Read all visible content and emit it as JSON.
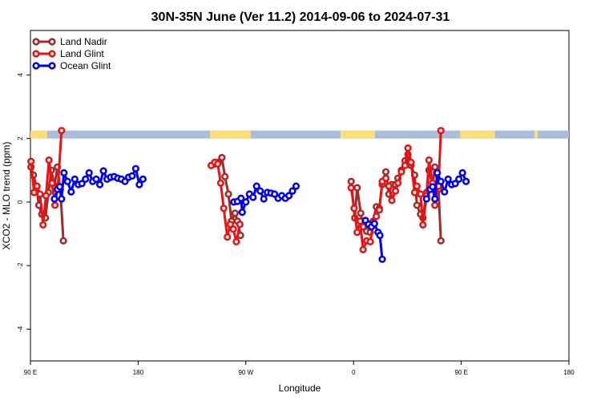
{
  "chart_data": {
    "type": "line",
    "title": "30N-35N June (Ver 11.2)   2014-09-06 to 2024-07-31",
    "xlabel": "Longitude",
    "ylabel": "XCO2 - MLO trend (ppm)",
    "xlim": [
      90,
      540
    ],
    "ylim": [
      -5.0,
      5.4
    ],
    "x_ticks": [
      {
        "value": 90,
        "label": "90 E"
      },
      {
        "value": 180,
        "label": "180"
      },
      {
        "value": 270,
        "label": "90 W"
      },
      {
        "value": 360,
        "label": "0"
      },
      {
        "value": 450,
        "label": "90 E"
      },
      {
        "value": 540,
        "label": "180"
      }
    ],
    "y_ticks": [
      {
        "value": -4,
        "label": "-4"
      },
      {
        "value": -2,
        "label": "-2"
      },
      {
        "value": 0,
        "label": "0"
      },
      {
        "value": 2,
        "label": "2"
      },
      {
        "value": 4,
        "label": "4"
      }
    ],
    "legend": {
      "position": "top-left"
    },
    "surface_band": {
      "y_range": [
        2.0,
        2.25
      ],
      "land_color": "#fddc7a",
      "ocean_color": "#a8bcdc",
      "land_segments": [
        [
          90,
          104
        ],
        [
          240,
          274
        ],
        [
          349,
          378
        ],
        [
          449,
          478
        ],
        [
          511,
          514
        ]
      ]
    },
    "series": [
      {
        "name": "Land Nadir",
        "color": "#a52a2a",
        "segments": [
          [
            [
              90.5,
              1.1
            ],
            [
              92.5,
              0.85
            ],
            [
              95,
              0.5
            ],
            [
              97,
              -0.1
            ],
            [
              99.5,
              -0.38
            ],
            [
              102.5,
              -0.5
            ],
            [
              105,
              0.3
            ],
            [
              107.5,
              1.0
            ],
            [
              110,
              0.5
            ],
            [
              112.5,
              1.1
            ],
            [
              115,
              0.4
            ],
            [
              117.5,
              -1.22
            ]
          ],
          [
            [
              244,
              1.2
            ],
            [
              247,
              1.25
            ],
            [
              250,
              1.4
            ],
            [
              252.5,
              0.8
            ],
            [
              255.5,
              0.25
            ],
            [
              258,
              -0.6
            ],
            [
              261,
              -0.35
            ],
            [
              263,
              -0.6
            ],
            [
              265.5,
              -1.05
            ]
          ],
          [
            [
              358,
              0.65
            ],
            [
              361,
              -0.5
            ],
            [
              363,
              0.45
            ],
            [
              366,
              -0.35
            ],
            [
              368,
              -0.78
            ],
            [
              371,
              -0.92
            ],
            [
              374,
              -0.95
            ],
            [
              376.5,
              -0.6
            ],
            [
              379,
              -0.15
            ],
            [
              381.5,
              -0.2
            ],
            [
              384,
              0.55
            ],
            [
              387,
              0.95
            ],
            [
              389.5,
              0.25
            ],
            [
              392,
              0.55
            ],
            [
              395,
              0.55
            ],
            [
              397,
              0.75
            ],
            [
              400,
              1.0
            ],
            [
              403,
              1.3
            ],
            [
              405.5,
              1.5
            ],
            [
              408,
              1.15
            ],
            [
              411,
              0.85
            ],
            [
              413,
              -0.1
            ],
            [
              416,
              -0.38
            ],
            [
              418,
              -0.5
            ],
            [
              421,
              0.3
            ],
            [
              423,
              1.0
            ],
            [
              426,
              0.5
            ],
            [
              428,
              1.1
            ],
            [
              431,
              0.4
            ],
            [
              433,
              -1.22
            ]
          ]
        ]
      },
      {
        "name": "Land Glint",
        "color": "#ee1111",
        "segments": [
          [
            [
              90.5,
              1.28
            ],
            [
              93,
              0.3
            ],
            [
              95.5,
              0.5
            ],
            [
              98,
              0.25
            ],
            [
              100.5,
              -0.72
            ],
            [
              103,
              0.2
            ],
            [
              105.5,
              1.32
            ],
            [
              108,
              0.6
            ],
            [
              110.5,
              -0.1
            ],
            [
              113,
              0.5
            ],
            [
              116,
              2.25
            ]
          ],
          [
            [
              241,
              1.15
            ],
            [
              244,
              1.25
            ],
            [
              246.5,
              1.2
            ],
            [
              249,
              0.6
            ],
            [
              251.5,
              -0.2
            ],
            [
              254.5,
              -1.1
            ],
            [
              257,
              -0.7
            ],
            [
              259.5,
              -0.85
            ],
            [
              262,
              -1.25
            ],
            [
              265,
              -0.7
            ]
          ],
          [
            [
              358,
              0.45
            ],
            [
              360.5,
              -0.2
            ],
            [
              363,
              -0.95
            ],
            [
              365.5,
              -0.6
            ],
            [
              368,
              -1.5
            ],
            [
              371,
              -1.22
            ],
            [
              374,
              -1.25
            ],
            [
              376.5,
              -0.65
            ],
            [
              379,
              -0.45
            ],
            [
              381.5,
              -0.25
            ],
            [
              384,
              0.65
            ],
            [
              387,
              0.75
            ],
            [
              389.5,
              0.5
            ],
            [
              392,
              0.05
            ],
            [
              395,
              0.35
            ],
            [
              397,
              0.6
            ],
            [
              400,
              0.95
            ],
            [
              403,
              1.15
            ],
            [
              405.5,
              1.7
            ],
            [
              408,
              1.25
            ],
            [
              411,
              0.3
            ],
            [
              413,
              0.5
            ],
            [
              416,
              0.25
            ],
            [
              418,
              -0.72
            ],
            [
              421,
              0.2
            ],
            [
              423,
              1.32
            ],
            [
              426,
              0.6
            ],
            [
              428,
              -0.1
            ],
            [
              431,
              0.5
            ],
            [
              433,
              2.25
            ]
          ]
        ]
      },
      {
        "name": "Ocean Glint",
        "color": "#0000ee",
        "segments": [
          [
            [
              110,
              0.1
            ],
            [
              112.5,
              0.4
            ],
            [
              114.5,
              0.48
            ],
            [
              116,
              0.1
            ],
            [
              118,
              0.92
            ],
            [
              121,
              0.65
            ],
            [
              124,
              0.32
            ],
            [
              127,
              0.72
            ],
            [
              130,
              0.55
            ],
            [
              133,
              0.58
            ],
            [
              136,
              0.72
            ],
            [
              139,
              0.92
            ],
            [
              142,
              0.65
            ],
            [
              145,
              0.72
            ],
            [
              148,
              0.55
            ],
            [
              151,
              0.98
            ],
            [
              154,
              0.72
            ],
            [
              157,
              0.78
            ],
            [
              160,
              0.8
            ],
            [
              163,
              0.75
            ],
            [
              166,
              0.72
            ],
            [
              169,
              0.65
            ],
            [
              172,
              0.78
            ],
            [
              175,
              0.82
            ],
            [
              178,
              1.05
            ],
            [
              181,
              0.55
            ],
            [
              184,
              0.72
            ]
          ],
          [
            [
              260,
              0.0
            ],
            [
              263,
              0.02
            ],
            [
              266,
              0.12
            ],
            [
              267,
              -0.32
            ],
            [
              270,
              0.0
            ],
            [
              273,
              0.25
            ],
            [
              276,
              0.15
            ],
            [
              279,
              0.5
            ],
            [
              282,
              0.35
            ],
            [
              285,
              0.1
            ],
            [
              288,
              0.3
            ],
            [
              291,
              0.28
            ],
            [
              294,
              0.25
            ],
            [
              297,
              0.12
            ],
            [
              300,
              0.2
            ],
            [
              303,
              0.12
            ],
            [
              306,
              0.2
            ],
            [
              309,
              0.35
            ],
            [
              312,
              0.5
            ]
          ],
          [
            [
              370,
              -0.58
            ],
            [
              372.5,
              -0.7
            ],
            [
              375,
              -0.78
            ],
            [
              377.5,
              -0.68
            ],
            [
              380.5,
              -0.95
            ],
            [
              382,
              -1.05
            ],
            [
              384,
              -1.8
            ]
          ],
          [
            [
              421,
              0.1
            ],
            [
              424,
              0.4
            ],
            [
              426,
              0.48
            ],
            [
              428,
              0.1
            ],
            [
              430,
              0.92
            ],
            [
              433,
              0.65
            ],
            [
              436,
              0.32
            ],
            [
              439,
              0.72
            ],
            [
              442,
              0.55
            ],
            [
              445,
              0.58
            ],
            [
              448,
              0.72
            ],
            [
              451,
              0.92
            ],
            [
              454,
              0.65
            ]
          ]
        ]
      }
    ]
  }
}
